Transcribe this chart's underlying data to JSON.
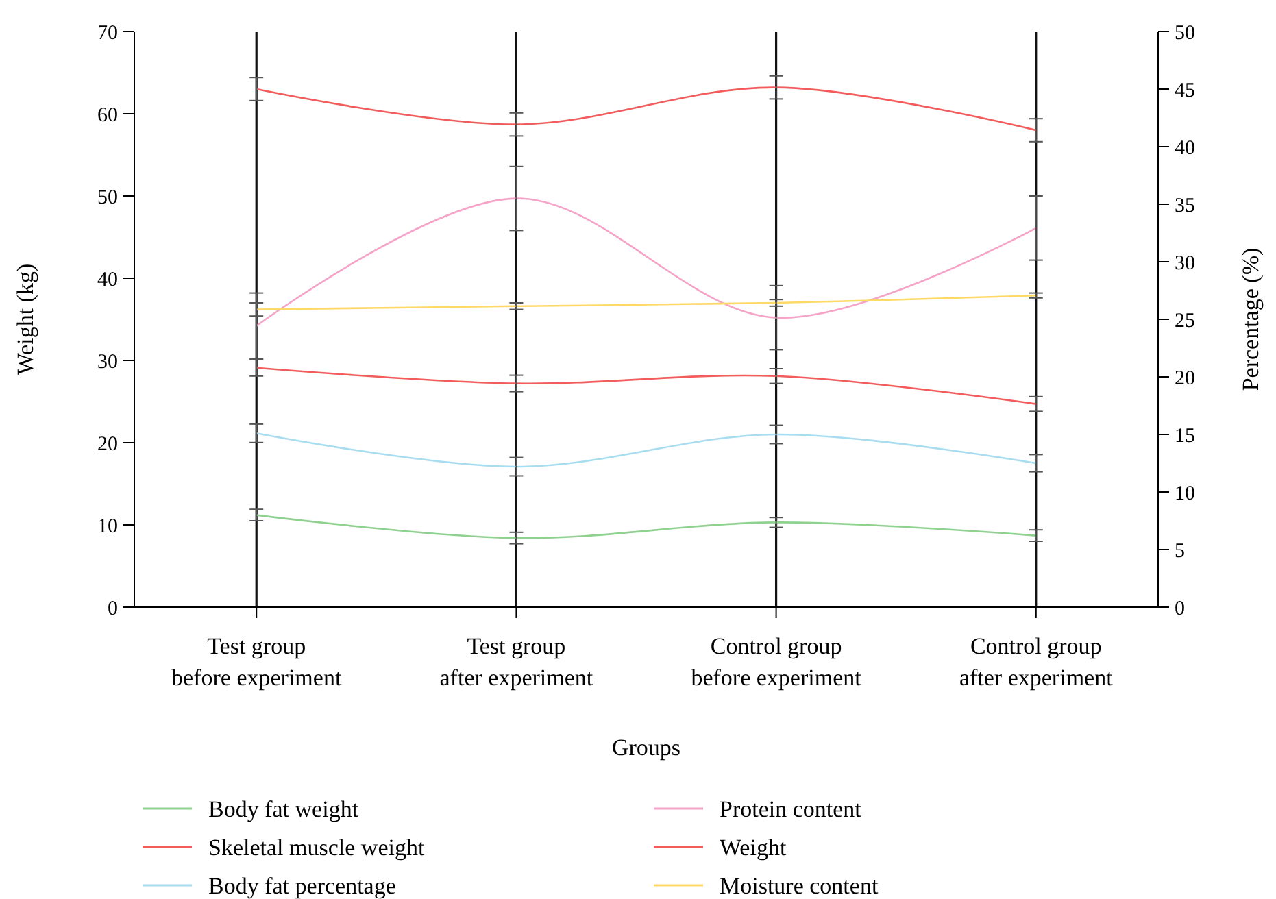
{
  "chart_data": {
    "type": "line",
    "xlabel": "Groups",
    "ylabel": "Weight (kg)",
    "y2label": "Percentage (%)",
    "categories": [
      "Test group\nbefore experiment",
      "Test group\nafter experiment",
      "Control group\nbefore experiment",
      "Control group\nafter experiment"
    ],
    "ylim": [
      0,
      70
    ],
    "yticks": [
      0,
      10,
      20,
      30,
      40,
      50,
      60,
      70
    ],
    "y2lim": [
      0,
      50
    ],
    "y2ticks": [
      0,
      5,
      10,
      15,
      20,
      25,
      30,
      35,
      40,
      45,
      50
    ],
    "grid": "x",
    "legend": "bottom",
    "marker": "none",
    "line_style": "solid",
    "series": [
      {
        "name": "Body fat weight",
        "color": "#8fd18f",
        "values": [
          11.2,
          8.4,
          10.3,
          8.7
        ],
        "errors": [
          0.7,
          0.7,
          0.6,
          0.7
        ]
      },
      {
        "name": "Skeletal muscle weight",
        "color": "#f25c5c",
        "values": [
          29.1,
          27.2,
          28.1,
          24.7
        ],
        "errors": [
          1.0,
          1.0,
          0.9,
          0.9
        ]
      },
      {
        "name": "Body fat percentage",
        "color": "#a8dcef",
        "axis": "y2",
        "values": [
          15.1,
          12.2,
          15.0,
          12.5
        ],
        "errors": [
          0.8,
          0.8,
          0.8,
          0.75
        ]
      },
      {
        "name": "Protein content",
        "color": "#f5a3c7",
        "values": [
          34.2,
          49.7,
          35.2,
          46.1
        ],
        "errors": [
          4.0,
          3.9,
          3.9,
          3.9
        ]
      },
      {
        "name": "Weight",
        "color": "#f25c5c",
        "values": [
          63.0,
          58.7,
          63.2,
          58.0
        ],
        "errors": [
          1.4,
          1.4,
          1.4,
          1.4
        ]
      },
      {
        "name": "Moisture content",
        "color": "#ffd966",
        "values": [
          36.2,
          36.6,
          37.0,
          37.9
        ],
        "errors": [
          0.8,
          0.4,
          0.4,
          0.3
        ]
      }
    ]
  }
}
